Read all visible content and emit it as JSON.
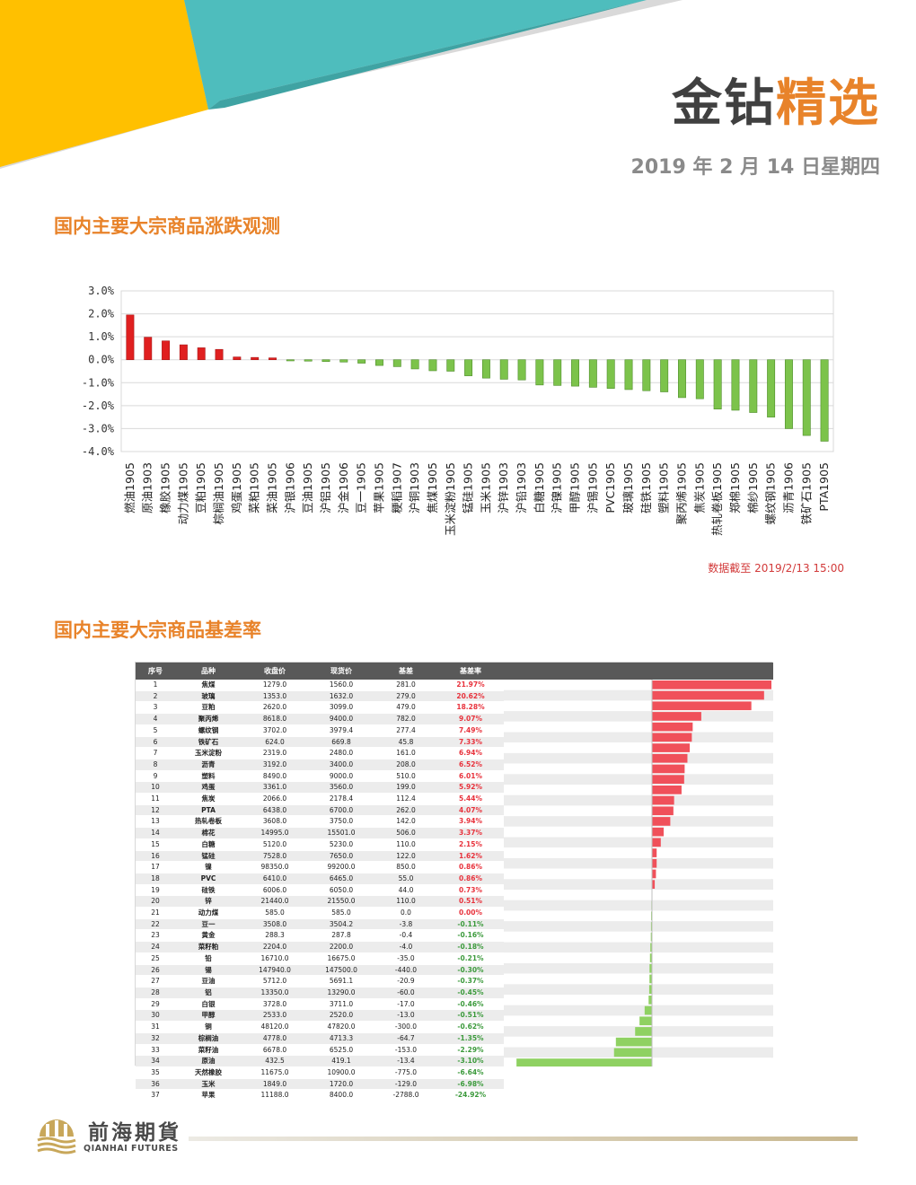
{
  "brand": {
    "part1": "金钻",
    "part2": "精选"
  },
  "date": "2019 年 2 月 14 日星期四",
  "section1": {
    "title": "国内主要大宗商品涨跌观测"
  },
  "section2": {
    "title": "国内主要大宗商品基差率"
  },
  "note": "数据截至 2019/2/13 15:00",
  "colors": {
    "accent": "#e8832a",
    "up": "#e02020",
    "down": "#7cc34b",
    "teal": "#4ebdbd",
    "yellow": "#ffc000"
  },
  "chart_data": {
    "type": "bar",
    "title": "",
    "ylim": [
      -4.0,
      3.0
    ],
    "yticks": [
      "3.0%",
      "2.0%",
      "1.0%",
      "0.0%",
      "-1.0%",
      "-2.0%",
      "-3.0%",
      "-4.0%"
    ],
    "grid": true,
    "categories": [
      "燃油1905",
      "原油1903",
      "橡胶1905",
      "动力煤1905",
      "豆粕1905",
      "棕榈油1905",
      "鸡蛋1905",
      "菜粕1905",
      "菜油1905",
      "沪银1906",
      "豆油1905",
      "沪铝1905",
      "沪金1906",
      "豆一1905",
      "苹果1905",
      "粳稻1907",
      "沪铜1903",
      "焦煤1905",
      "玉米淀粉1905",
      "锰硅1905",
      "玉米1905",
      "沪锌1903",
      "沪铅1903",
      "白糖1905",
      "沪镍1905",
      "甲醇1905",
      "沪锡1905",
      "PVC1905",
      "玻璃1905",
      "硅铁1905",
      "塑料1905",
      "聚丙烯1905",
      "焦炭1905",
      "热轧卷板1905",
      "郑棉1905",
      "棉纱1905",
      "螺纹钢1905",
      "沥青1906",
      "铁矿石1905",
      "PTA1905"
    ],
    "values": [
      1.95,
      0.98,
      0.82,
      0.65,
      0.52,
      0.45,
      0.12,
      0.1,
      0.08,
      -0.05,
      -0.06,
      -0.08,
      -0.1,
      -0.15,
      -0.25,
      -0.3,
      -0.4,
      -0.48,
      -0.5,
      -0.7,
      -0.8,
      -0.85,
      -0.88,
      -1.1,
      -1.12,
      -1.15,
      -1.2,
      -1.25,
      -1.3,
      -1.35,
      -1.4,
      -1.65,
      -1.7,
      -2.15,
      -2.2,
      -2.3,
      -2.5,
      -3.0,
      -3.3,
      -3.55
    ]
  },
  "basis_table": {
    "headers": [
      "序号",
      "品种",
      "收盘价",
      "现货价",
      "基差",
      "基差率"
    ],
    "rows": [
      [
        "1",
        "焦煤",
        "1279.0",
        "1560.0",
        "281.0",
        "21.97%"
      ],
      [
        "2",
        "玻璃",
        "1353.0",
        "1632.0",
        "279.0",
        "20.62%"
      ],
      [
        "3",
        "豆粕",
        "2620.0",
        "3099.0",
        "479.0",
        "18.28%"
      ],
      [
        "4",
        "聚丙烯",
        "8618.0",
        "9400.0",
        "782.0",
        "9.07%"
      ],
      [
        "5",
        "螺纹钢",
        "3702.0",
        "3979.4",
        "277.4",
        "7.49%"
      ],
      [
        "6",
        "铁矿石",
        "624.0",
        "669.8",
        "45.8",
        "7.33%"
      ],
      [
        "7",
        "玉米淀粉",
        "2319.0",
        "2480.0",
        "161.0",
        "6.94%"
      ],
      [
        "8",
        "沥青",
        "3192.0",
        "3400.0",
        "208.0",
        "6.52%"
      ],
      [
        "9",
        "塑料",
        "8490.0",
        "9000.0",
        "510.0",
        "6.01%"
      ],
      [
        "10",
        "鸡蛋",
        "3361.0",
        "3560.0",
        "199.0",
        "5.92%"
      ],
      [
        "11",
        "焦炭",
        "2066.0",
        "2178.4",
        "112.4",
        "5.44%"
      ],
      [
        "12",
        "PTA",
        "6438.0",
        "6700.0",
        "262.0",
        "4.07%"
      ],
      [
        "13",
        "热轧卷板",
        "3608.0",
        "3750.0",
        "142.0",
        "3.94%"
      ],
      [
        "14",
        "棉花",
        "14995.0",
        "15501.0",
        "506.0",
        "3.37%"
      ],
      [
        "15",
        "白糖",
        "5120.0",
        "5230.0",
        "110.0",
        "2.15%"
      ],
      [
        "16",
        "锰硅",
        "7528.0",
        "7650.0",
        "122.0",
        "1.62%"
      ],
      [
        "17",
        "镍",
        "98350.0",
        "99200.0",
        "850.0",
        "0.86%"
      ],
      [
        "18",
        "PVC",
        "6410.0",
        "6465.0",
        "55.0",
        "0.86%"
      ],
      [
        "19",
        "硅铁",
        "6006.0",
        "6050.0",
        "44.0",
        "0.73%"
      ],
      [
        "20",
        "锌",
        "21440.0",
        "21550.0",
        "110.0",
        "0.51%"
      ],
      [
        "21",
        "动力煤",
        "585.0",
        "585.0",
        "0.0",
        "0.00%"
      ],
      [
        "22",
        "豆一",
        "3508.0",
        "3504.2",
        "-3.8",
        "-0.11%"
      ],
      [
        "23",
        "黄金",
        "288.3",
        "287.8",
        "-0.4",
        "-0.16%"
      ],
      [
        "24",
        "菜籽粕",
        "2204.0",
        "2200.0",
        "-4.0",
        "-0.18%"
      ],
      [
        "25",
        "铅",
        "16710.0",
        "16675.0",
        "-35.0",
        "-0.21%"
      ],
      [
        "26",
        "锡",
        "147940.0",
        "147500.0",
        "-440.0",
        "-0.30%"
      ],
      [
        "27",
        "豆油",
        "5712.0",
        "5691.1",
        "-20.9",
        "-0.37%"
      ],
      [
        "28",
        "铝",
        "13350.0",
        "13290.0",
        "-60.0",
        "-0.45%"
      ],
      [
        "29",
        "白银",
        "3728.0",
        "3711.0",
        "-17.0",
        "-0.46%"
      ],
      [
        "30",
        "甲醇",
        "2533.0",
        "2520.0",
        "-13.0",
        "-0.51%"
      ],
      [
        "31",
        "铜",
        "48120.0",
        "47820.0",
        "-300.0",
        "-0.62%"
      ],
      [
        "32",
        "棕榈油",
        "4778.0",
        "4713.3",
        "-64.7",
        "-1.35%"
      ],
      [
        "33",
        "菜籽油",
        "6678.0",
        "6525.0",
        "-153.0",
        "-2.29%"
      ],
      [
        "34",
        "原油",
        "432.5",
        "419.1",
        "-13.4",
        "-3.10%"
      ],
      [
        "35",
        "天然橡胶",
        "11675.0",
        "10900.0",
        "-775.0",
        "-6.64%"
      ],
      [
        "36",
        "玉米",
        "1849.0",
        "1720.0",
        "-129.0",
        "-6.98%"
      ],
      [
        "37",
        "苹果",
        "11188.0",
        "8400.0",
        "-2788.0",
        "-24.92%"
      ]
    ]
  },
  "logo": {
    "cn": "前海期貨",
    "en": "QIANHAI FUTURES"
  }
}
